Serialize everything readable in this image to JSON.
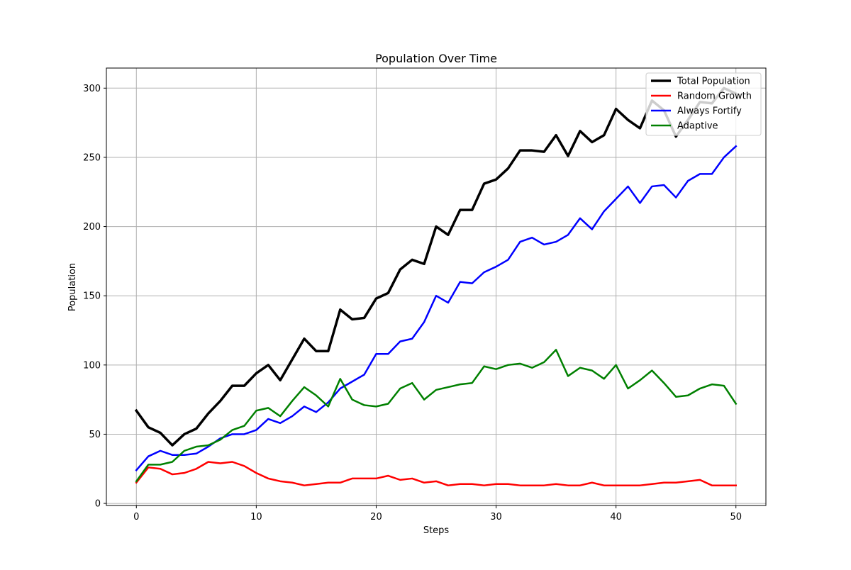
{
  "chart_data": {
    "type": "line",
    "title": "Population Over Time",
    "xlabel": "Steps",
    "ylabel": "Population",
    "xlim": [
      -2.5,
      52.5
    ],
    "ylim": [
      -1.5,
      314.5
    ],
    "xticks": [
      0,
      10,
      20,
      30,
      40,
      50
    ],
    "yticks": [
      0,
      50,
      100,
      150,
      200,
      250,
      300
    ],
    "grid": true,
    "legend_position": "top-right",
    "x": [
      0,
      1,
      2,
      3,
      4,
      5,
      6,
      7,
      8,
      9,
      10,
      11,
      12,
      13,
      14,
      15,
      16,
      17,
      18,
      19,
      20,
      21,
      22,
      23,
      24,
      25,
      26,
      27,
      28,
      29,
      30,
      31,
      32,
      33,
      34,
      35,
      36,
      37,
      38,
      39,
      40,
      41,
      42,
      43,
      44,
      45,
      46,
      47,
      48,
      49,
      50
    ],
    "series": [
      {
        "name": "Total Population",
        "color": "#000000",
        "values": [
          67,
          55,
          51,
          42,
          50,
          54,
          65,
          74,
          85,
          85,
          94,
          100,
          89,
          104,
          119,
          110,
          110,
          140,
          133,
          134,
          148,
          152,
          169,
          176,
          173,
          200,
          194,
          212,
          212,
          231,
          234,
          242,
          255,
          255,
          254,
          266,
          251,
          269,
          261,
          266,
          285,
          277,
          271,
          291,
          284,
          265,
          277,
          290,
          289,
          300,
          296
        ]
      },
      {
        "name": "Random Growth",
        "color": "#ff0000",
        "values": [
          15,
          26,
          25,
          21,
          22,
          25,
          30,
          29,
          30,
          27,
          22,
          18,
          16,
          15,
          13,
          14,
          15,
          15,
          18,
          18,
          18,
          20,
          17,
          18,
          15,
          16,
          13,
          14,
          14,
          13,
          14,
          14,
          13,
          13,
          13,
          14,
          13,
          13,
          15,
          13,
          13,
          13,
          13,
          14,
          15,
          15,
          16,
          17,
          13,
          13,
          13
        ]
      },
      {
        "name": "Always Fortify",
        "color": "#0000ff",
        "values": [
          24,
          34,
          38,
          35,
          35,
          36,
          41,
          47,
          50,
          50,
          53,
          61,
          58,
          63,
          70,
          66,
          73,
          83,
          88,
          93,
          108,
          108,
          117,
          119,
          131,
          150,
          145,
          160,
          159,
          167,
          171,
          176,
          189,
          192,
          187,
          189,
          194,
          206,
          198,
          211,
          220,
          229,
          217,
          229,
          230,
          221,
          233,
          238,
          238,
          250,
          258
        ]
      },
      {
        "name": "Adaptive",
        "color": "#008000",
        "values": [
          16,
          28,
          28,
          30,
          38,
          41,
          42,
          46,
          53,
          56,
          67,
          69,
          63,
          74,
          84,
          78,
          70,
          90,
          75,
          71,
          70,
          72,
          83,
          87,
          75,
          82,
          84,
          86,
          87,
          99,
          97,
          100,
          101,
          98,
          102,
          111,
          92,
          98,
          96,
          90,
          100,
          83,
          89,
          96,
          87,
          77,
          78,
          83,
          86,
          85,
          72
        ]
      }
    ]
  }
}
